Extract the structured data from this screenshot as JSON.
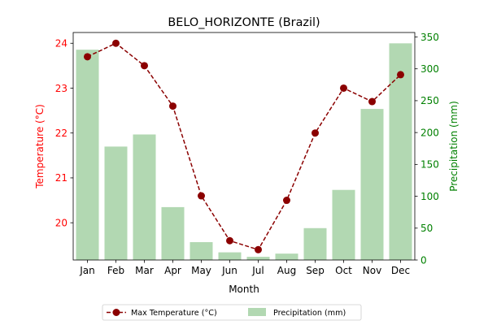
{
  "chart_data": {
    "type": "bar",
    "title": "BELO_HORIZONTE (Brazil)",
    "xlabel": "Month",
    "ylabel_left": "Temperature (°C)",
    "ylabel_right": "Precipitation (mm)",
    "categories": [
      "Jan",
      "Feb",
      "Mar",
      "Apr",
      "May",
      "Jun",
      "Jul",
      "Aug",
      "Sep",
      "Oct",
      "Nov",
      "Dec"
    ],
    "series": [
      {
        "name": "Max Temperature (°C)",
        "type": "line",
        "axis": "left",
        "color": "#8b0000",
        "values": [
          23.7,
          24.0,
          23.5,
          22.6,
          20.6,
          19.6,
          19.4,
          20.5,
          22.0,
          23.0,
          22.7,
          23.3
        ]
      },
      {
        "name": "Precipitation (mm)",
        "type": "bar",
        "axis": "right",
        "color": "#b2d8b2",
        "values": [
          330,
          178,
          197,
          83,
          28,
          12,
          5,
          10,
          50,
          110,
          237,
          340
        ]
      }
    ],
    "ylim_left": [
      19.17,
      24.24
    ],
    "yticks_left": [
      20,
      21,
      22,
      23,
      24
    ],
    "ylim_right": [
      0,
      357
    ],
    "yticks_right": [
      0,
      50,
      100,
      150,
      200,
      250,
      300,
      350
    ],
    "left_axis_color": "#ff0000",
    "right_axis_color": "#008000",
    "grid": false,
    "legend_position": "bottom-center"
  }
}
